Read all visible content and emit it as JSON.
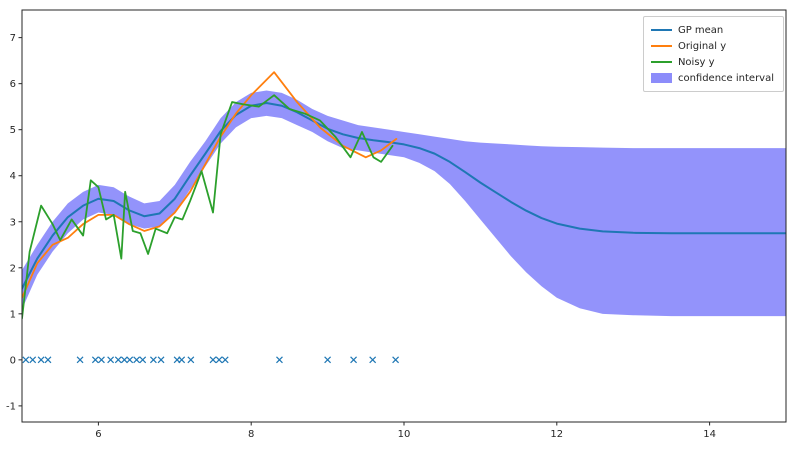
{
  "figure": {
    "background": "#ffffff",
    "frame_color": "#262626",
    "tick_color": "#262626"
  },
  "chart_data": {
    "type": "line",
    "title": "",
    "xlabel": "",
    "ylabel": "",
    "grid": false,
    "x_range": [
      5,
      15
    ],
    "y_range": [
      -1.35,
      7.6
    ],
    "x_ticks": [
      6,
      8,
      10,
      12,
      14
    ],
    "y_ticks": [
      -1,
      0,
      1,
      2,
      3,
      4,
      5,
      6,
      7
    ],
    "band": {
      "name": "confidence interval",
      "color": "#8080fa",
      "opacity": 0.85,
      "x": [
        5.0,
        5.2,
        5.4,
        5.6,
        5.8,
        6.0,
        6.2,
        6.4,
        6.6,
        6.8,
        7.0,
        7.2,
        7.4,
        7.6,
        7.8,
        8.0,
        8.2,
        8.4,
        8.6,
        8.8,
        9.0,
        9.2,
        9.4,
        9.6,
        9.8,
        10.0,
        10.2,
        10.4,
        10.6,
        10.8,
        11.0,
        11.2,
        11.4,
        11.6,
        11.8,
        12.0,
        12.3,
        12.6,
        13.0,
        13.5,
        14.0,
        14.5,
        15.0
      ],
      "upper": [
        1.95,
        2.5,
        3.0,
        3.4,
        3.65,
        3.8,
        3.75,
        3.55,
        3.4,
        3.45,
        3.8,
        4.3,
        4.75,
        5.25,
        5.6,
        5.8,
        5.85,
        5.8,
        5.65,
        5.45,
        5.3,
        5.2,
        5.1,
        5.05,
        5.0,
        4.95,
        4.9,
        4.85,
        4.8,
        4.75,
        4.72,
        4.7,
        4.68,
        4.66,
        4.64,
        4.63,
        4.62,
        4.61,
        4.6,
        4.6,
        4.6,
        4.6,
        4.6
      ],
      "lower": [
        1.1,
        1.85,
        2.35,
        2.75,
        3.05,
        3.2,
        3.15,
        2.95,
        2.85,
        2.9,
        3.2,
        3.7,
        4.2,
        4.7,
        5.05,
        5.25,
        5.3,
        5.25,
        5.1,
        4.95,
        4.75,
        4.6,
        4.55,
        4.5,
        4.45,
        4.4,
        4.28,
        4.1,
        3.82,
        3.45,
        3.05,
        2.65,
        2.25,
        1.9,
        1.6,
        1.35,
        1.12,
        1.0,
        0.97,
        0.95,
        0.95,
        0.95,
        0.95
      ]
    },
    "series": [
      {
        "name": "GP mean",
        "color": "#1f77b4",
        "width": 2,
        "x": [
          5.0,
          5.2,
          5.4,
          5.6,
          5.8,
          6.0,
          6.2,
          6.4,
          6.6,
          6.8,
          7.0,
          7.2,
          7.4,
          7.6,
          7.8,
          8.0,
          8.2,
          8.4,
          8.6,
          8.8,
          9.0,
          9.2,
          9.4,
          9.6,
          9.8,
          10.0,
          10.2,
          10.4,
          10.6,
          10.8,
          11.0,
          11.2,
          11.4,
          11.6,
          11.8,
          12.0,
          12.3,
          12.6,
          13.0,
          13.5,
          14.0,
          14.5,
          15.0
        ],
        "y": [
          1.55,
          2.2,
          2.7,
          3.1,
          3.35,
          3.5,
          3.45,
          3.25,
          3.12,
          3.18,
          3.5,
          4.0,
          4.48,
          4.97,
          5.32,
          5.52,
          5.58,
          5.52,
          5.38,
          5.2,
          5.02,
          4.9,
          4.82,
          4.77,
          4.73,
          4.68,
          4.6,
          4.48,
          4.3,
          4.08,
          3.85,
          3.64,
          3.43,
          3.24,
          3.08,
          2.96,
          2.85,
          2.79,
          2.76,
          2.75,
          2.75,
          2.75,
          2.75
        ]
      },
      {
        "name": "Original y",
        "color": "#ff7f0e",
        "width": 1.8,
        "x": [
          5.0,
          5.2,
          5.4,
          5.6,
          5.8,
          6.0,
          6.2,
          6.4,
          6.6,
          6.8,
          7.0,
          7.2,
          7.4,
          7.6,
          7.8,
          8.0,
          8.3,
          8.6,
          8.9,
          9.2,
          9.5,
          9.7,
          9.9
        ],
        "y": [
          1.35,
          2.1,
          2.5,
          2.65,
          2.95,
          3.15,
          3.15,
          2.95,
          2.8,
          2.9,
          3.2,
          3.65,
          4.25,
          4.85,
          5.35,
          5.75,
          6.25,
          5.6,
          5.05,
          4.65,
          4.4,
          4.55,
          4.8
        ]
      },
      {
        "name": "Noisy y",
        "color": "#2ca02c",
        "width": 1.8,
        "x": [
          5.0,
          5.1,
          5.25,
          5.4,
          5.5,
          5.65,
          5.8,
          5.9,
          6.0,
          6.1,
          6.2,
          6.3,
          6.35,
          6.45,
          6.55,
          6.65,
          6.75,
          6.9,
          7.0,
          7.1,
          7.2,
          7.35,
          7.5,
          7.6,
          7.75,
          7.9,
          8.1,
          8.3,
          8.5,
          8.7,
          8.9,
          9.1,
          9.3,
          9.45,
          9.6,
          9.7,
          9.85
        ],
        "y": [
          0.9,
          2.35,
          3.35,
          2.95,
          2.6,
          3.05,
          2.7,
          3.9,
          3.75,
          3.05,
          3.15,
          2.2,
          3.65,
          2.8,
          2.75,
          2.3,
          2.85,
          2.75,
          3.1,
          3.05,
          3.45,
          4.1,
          3.2,
          4.9,
          5.6,
          5.55,
          5.5,
          5.75,
          5.45,
          5.35,
          5.2,
          4.85,
          4.4,
          4.95,
          4.4,
          4.3,
          4.65
        ]
      }
    ],
    "markers": {
      "name": "training points",
      "symbol": "x",
      "color": "#1f77b4",
      "y": 0,
      "x": [
        5.05,
        5.14,
        5.25,
        5.34,
        5.76,
        5.96,
        6.04,
        6.16,
        6.26,
        6.34,
        6.41,
        6.5,
        6.58,
        6.72,
        6.82,
        7.03,
        7.09,
        7.21,
        7.5,
        7.58,
        7.66,
        8.37,
        9.0,
        9.34,
        9.59,
        9.89
      ]
    },
    "legend": {
      "position": "upper right",
      "entries": [
        {
          "label": "GP mean",
          "color": "#1f77b4",
          "kind": "line"
        },
        {
          "label": "Original y",
          "color": "#ff7f0e",
          "kind": "line"
        },
        {
          "label": "Noisy y",
          "color": "#2ca02c",
          "kind": "line"
        },
        {
          "label": "confidence interval",
          "color": "#8080fa",
          "kind": "patch"
        }
      ]
    }
  }
}
